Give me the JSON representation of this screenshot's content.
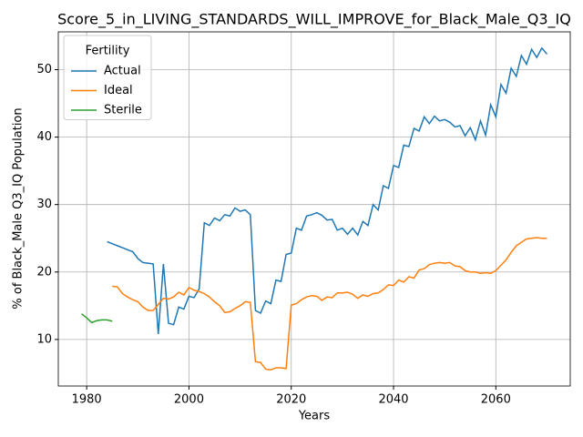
{
  "chart_data": {
    "type": "line",
    "title": "Score_5_in_LIVING_STANDARDS_WILL_IMPROVE_for_Black_Male_Q3_IQ",
    "xlabel": "Years",
    "ylabel": "% of Black_Male Q3_IQ Population",
    "legend_title": "Fertility",
    "legend_loc": "upper left",
    "grid": true,
    "xlim": [
      1974.45,
      2074.55
    ],
    "xticks": [
      1980,
      2000,
      2020,
      2040,
      2060
    ],
    "ylim": [
      3.1,
      55.6
    ],
    "yticks": [
      10,
      20,
      30,
      40,
      50
    ],
    "x": [
      1979,
      1980,
      1981,
      1982,
      1983,
      1984,
      1985,
      1986,
      1987,
      1988,
      1989,
      1990,
      1991,
      1992,
      1993,
      1994,
      1995,
      1996,
      1997,
      1998,
      1999,
      2000,
      2001,
      2002,
      2003,
      2004,
      2005,
      2006,
      2007,
      2008,
      2009,
      2010,
      2011,
      2012,
      2013,
      2014,
      2015,
      2016,
      2017,
      2018,
      2019,
      2020,
      2021,
      2022,
      2023,
      2024,
      2025,
      2026,
      2027,
      2028,
      2029,
      2030,
      2031,
      2032,
      2033,
      2034,
      2035,
      2036,
      2037,
      2038,
      2039,
      2040,
      2041,
      2042,
      2043,
      2044,
      2045,
      2046,
      2047,
      2048,
      2049,
      2050,
      2051,
      2052,
      2053,
      2054,
      2055,
      2056,
      2057,
      2058,
      2059,
      2060,
      2061,
      2062,
      2063,
      2064,
      2065,
      2066,
      2067,
      2068,
      2069,
      2070
    ],
    "series": [
      {
        "name": "Actual",
        "color": "#1f77b4",
        "values": [
          null,
          null,
          null,
          null,
          null,
          24.5,
          24.2,
          23.9,
          23.6,
          23.3,
          23.0,
          22.0,
          21.4,
          21.3,
          21.2,
          10.8,
          21.2,
          12.4,
          12.2,
          14.8,
          14.5,
          16.4,
          16.2,
          17.5,
          27.3,
          26.9,
          28.0,
          27.6,
          28.5,
          28.3,
          29.5,
          29.0,
          29.2,
          28.5,
          14.3,
          13.9,
          15.7,
          15.3,
          18.8,
          18.6,
          22.6,
          22.8,
          26.5,
          26.2,
          28.3,
          28.5,
          28.8,
          28.4,
          27.7,
          27.8,
          26.2,
          26.5,
          25.6,
          26.5,
          25.5,
          27.5,
          26.9,
          30.0,
          29.2,
          32.8,
          32.4,
          35.8,
          35.5,
          38.8,
          38.6,
          41.3,
          40.9,
          43.0,
          42.0,
          43.1,
          42.4,
          42.6,
          42.2,
          41.5,
          41.7,
          40.2,
          41.4,
          39.6,
          42.4,
          40.3,
          44.8,
          43.0,
          47.8,
          46.5,
          50.2,
          49.0,
          52.1,
          50.8,
          53.0,
          51.8,
          53.2,
          52.3
        ]
      },
      {
        "name": "Ideal",
        "color": "#ff7f0e",
        "values": [
          null,
          null,
          null,
          null,
          null,
          null,
          17.9,
          17.8,
          16.8,
          16.3,
          15.9,
          15.6,
          14.8,
          14.3,
          14.3,
          15.2,
          16.1,
          16.0,
          16.3,
          17.0,
          16.6,
          17.7,
          17.3,
          17.1,
          16.8,
          16.3,
          15.6,
          15.0,
          14.0,
          14.1,
          14.6,
          15.0,
          15.6,
          15.5,
          6.7,
          6.6,
          5.6,
          5.5,
          5.8,
          5.8,
          5.7,
          15.1,
          15.3,
          15.9,
          16.3,
          16.5,
          16.4,
          15.8,
          16.3,
          16.2,
          16.9,
          16.9,
          17.0,
          16.7,
          16.1,
          16.6,
          16.4,
          16.8,
          16.9,
          17.4,
          18.1,
          18.0,
          18.8,
          18.5,
          19.3,
          19.1,
          20.3,
          20.5,
          21.1,
          21.3,
          21.4,
          21.3,
          21.4,
          20.9,
          20.8,
          20.2,
          20.0,
          20.0,
          19.8,
          19.9,
          19.8,
          20.2,
          21.0,
          21.8,
          22.9,
          23.9,
          24.4,
          24.9,
          25.0,
          25.1,
          25.0,
          25.0
        ]
      },
      {
        "name": "Sterile",
        "color": "#2ca02c",
        "values": [
          13.8,
          13.2,
          12.5,
          12.8,
          12.9,
          12.9,
          12.7,
          null,
          null,
          null,
          null,
          null,
          null,
          null,
          null,
          null,
          null,
          null,
          null,
          null,
          null,
          null,
          null,
          null,
          null,
          null,
          null,
          null,
          null,
          null,
          null,
          null,
          null,
          null,
          null,
          null,
          null,
          null,
          null,
          null,
          null,
          null,
          null,
          null,
          null,
          null,
          null,
          null,
          null,
          null,
          null,
          null,
          null,
          null,
          null,
          null,
          null,
          null,
          null,
          null,
          null,
          null,
          null,
          null,
          null,
          null,
          null,
          null,
          null,
          null,
          null,
          null,
          null,
          null,
          null,
          null,
          null,
          null,
          null,
          null,
          null,
          null,
          null,
          null,
          null,
          null,
          null,
          null,
          null,
          null,
          null,
          null
        ]
      }
    ]
  }
}
